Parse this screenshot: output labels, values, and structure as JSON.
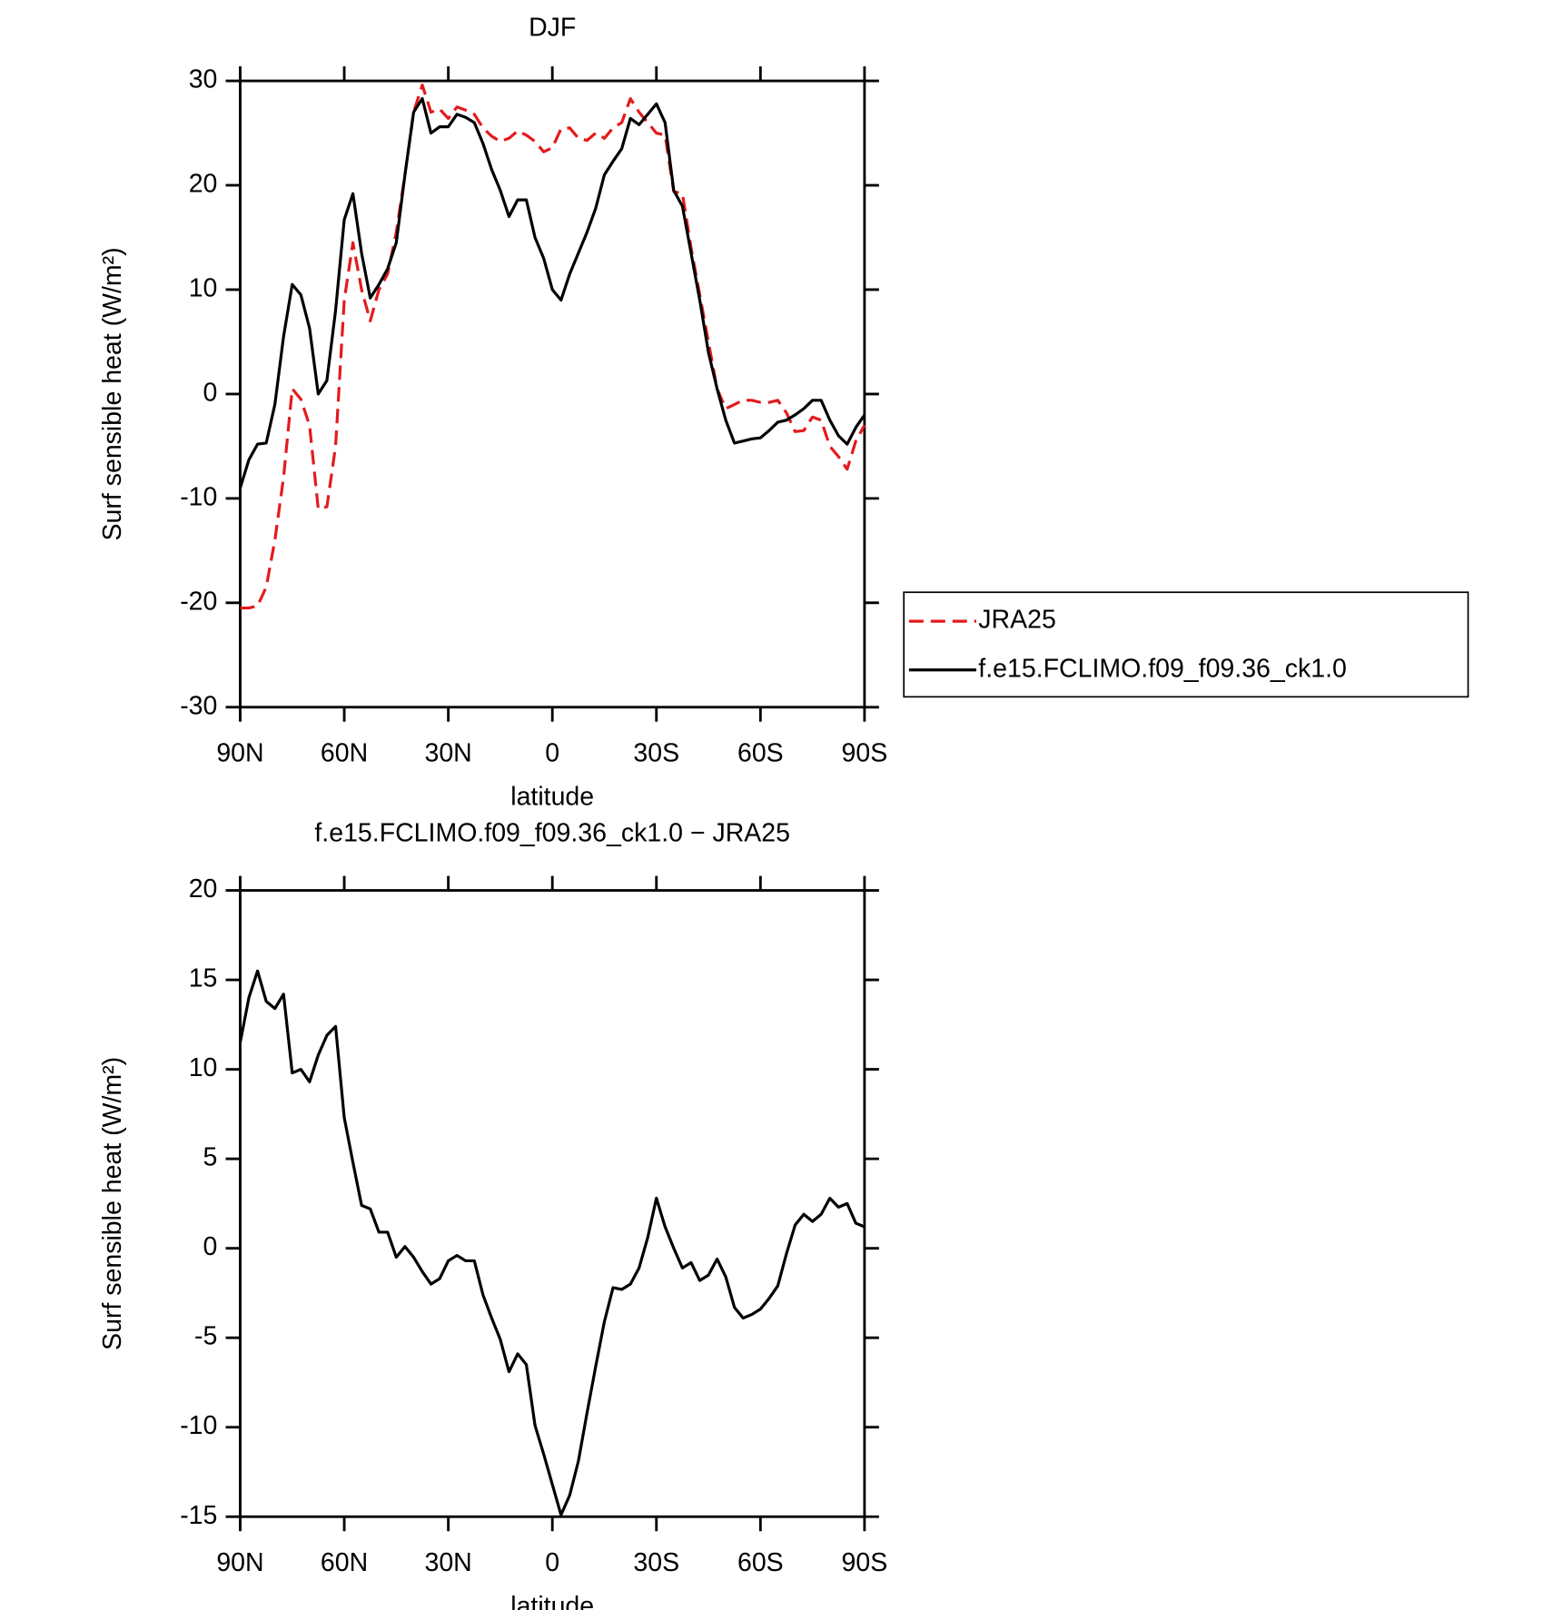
{
  "chart_data": [
    {
      "type": "line",
      "title": "DJF",
      "xlabel": "latitude",
      "ylabel": "Surf sensible heat (W/m²)",
      "legend": "right",
      "x": [
        90,
        87.5,
        85,
        82.5,
        80,
        77.5,
        75,
        72.5,
        70,
        67.5,
        65,
        62.5,
        60,
        57.5,
        55,
        52.5,
        50,
        47.5,
        45,
        42.5,
        40,
        37.5,
        35,
        32.5,
        30,
        27.5,
        25,
        22.5,
        20,
        17.5,
        15,
        12.5,
        10,
        7.5,
        5,
        2.5,
        0,
        -2.5,
        -5,
        -7.5,
        -10,
        -12.5,
        -15,
        -17.5,
        -20,
        -22.5,
        -25,
        -27.5,
        -30,
        -32.5,
        -35,
        -37.5,
        -40,
        -42.5,
        -45,
        -47.5,
        -50,
        -52.5,
        -55,
        -57.5,
        -60,
        -62.5,
        -65,
        -67.5,
        -70,
        -72.5,
        -75,
        -77.5,
        -80,
        -82.5,
        -85,
        -87.5,
        -90
      ],
      "xlim": [
        90,
        -90
      ],
      "xticks": [
        {
          "value": 90,
          "label": "90N"
        },
        {
          "value": 60,
          "label": "60N"
        },
        {
          "value": 30,
          "label": "30N"
        },
        0,
        {
          "value": -30,
          "label": "30S"
        },
        {
          "value": -60,
          "label": "60S"
        },
        {
          "value": -90,
          "label": "90S"
        }
      ],
      "ylim": [
        -30,
        30
      ],
      "yticks": [
        -30,
        -20,
        -10,
        0,
        10,
        20,
        30
      ],
      "series": [
        {
          "name": "JRA25",
          "color": "#e41a1c",
          "linestyle": "dashed",
          "values": [
            -20.5,
            -20.5,
            -20.3,
            -18.5,
            -14,
            -8,
            0.5,
            -0.5,
            -3,
            -11,
            -10.8,
            -5,
            9,
            14.5,
            10,
            7,
            10,
            11.5,
            15.5,
            21,
            27,
            29.6,
            27,
            27.3,
            26.4,
            27.5,
            27.2,
            26.8,
            25.5,
            24.7,
            24.2,
            24.5,
            25.2,
            24.8,
            24.2,
            23.2,
            23.6,
            25.4,
            25.5,
            24.5,
            24.3,
            25,
            24.5,
            25.5,
            26,
            28.3,
            27,
            26,
            25,
            24.8,
            19.4,
            19.2,
            14,
            9.5,
            5,
            0.5,
            -1.4,
            -1,
            -0.6,
            -0.6,
            -0.8,
            -0.8,
            -0.6,
            -1.8,
            -3.6,
            -3.5,
            -2.2,
            -2.5,
            -5,
            -6,
            -7.2,
            -4.5,
            -3
          ]
        },
        {
          "name": "f.e15.FCLIMO.f09_f09.36_ck1.0",
          "color": "#000000",
          "linestyle": "solid",
          "values": [
            -9,
            -6.3,
            -4.8,
            -4.7,
            -1,
            5.5,
            10.5,
            9.5,
            6.3,
            0,
            1.3,
            8,
            16.7,
            19.2,
            13.5,
            9.2,
            10.5,
            12,
            14.5,
            21,
            27,
            28.3,
            25,
            25.6,
            25.6,
            26.8,
            26.5,
            26,
            24,
            21.5,
            19.5,
            17,
            18.6,
            18.6,
            15,
            13,
            10,
            9,
            11.5,
            13.5,
            15.5,
            17.8,
            21,
            22.3,
            23.5,
            26.4,
            25.8,
            26.8,
            27.8,
            26,
            19.5,
            18,
            13.5,
            9,
            4,
            0.5,
            -2.5,
            -4.7,
            -4.5,
            -4.3,
            -4.2,
            -3.5,
            -2.7,
            -2.5,
            -2,
            -1.4,
            -0.6,
            -0.6,
            -2.5,
            -4,
            -4.8,
            -3.2,
            -2
          ]
        }
      ]
    },
    {
      "type": "line",
      "title": "f.e15.FCLIMO.f09_f09.36_ck1.0 − JRA25",
      "xlabel": "latitude",
      "ylabel": "Surf sensible heat (W/m²)",
      "x": [
        90,
        87.5,
        85,
        82.5,
        80,
        77.5,
        75,
        72.5,
        70,
        67.5,
        65,
        62.5,
        60,
        57.5,
        55,
        52.5,
        50,
        47.5,
        45,
        42.5,
        40,
        37.5,
        35,
        32.5,
        30,
        27.5,
        25,
        22.5,
        20,
        17.5,
        15,
        12.5,
        10,
        7.5,
        5,
        2.5,
        0,
        -2.5,
        -5,
        -7.5,
        -10,
        -12.5,
        -15,
        -17.5,
        -20,
        -22.5,
        -25,
        -27.5,
        -30,
        -32.5,
        -35,
        -37.5,
        -40,
        -42.5,
        -45,
        -47.5,
        -50,
        -52.5,
        -55,
        -57.5,
        -60,
        -62.5,
        -65,
        -67.5,
        -70,
        -72.5,
        -75,
        -77.5,
        -80,
        -82.5,
        -85,
        -87.5,
        -90
      ],
      "xlim": [
        90,
        -90
      ],
      "xticks": [
        {
          "value": 90,
          "label": "90N"
        },
        {
          "value": 60,
          "label": "60N"
        },
        {
          "value": 30,
          "label": "30N"
        },
        0,
        {
          "value": -30,
          "label": "30S"
        },
        {
          "value": -60,
          "label": "60S"
        },
        {
          "value": -90,
          "label": "90S"
        }
      ],
      "ylim": [
        -15,
        20
      ],
      "yticks": [
        -15,
        -10,
        -5,
        0,
        5,
        10,
        15,
        20
      ],
      "color": "#000000",
      "values": [
        11.5,
        14,
        15.5,
        13.8,
        13.4,
        14.2,
        9.8,
        10,
        9.3,
        10.8,
        11.9,
        12.4,
        7.3,
        4.8,
        2.4,
        2.2,
        0.9,
        0.9,
        -0.5,
        0.1,
        -0.5,
        -1.3,
        -2,
        -1.7,
        -0.7,
        -0.4,
        -0.7,
        -0.7,
        -2.6,
        -3.9,
        -5.1,
        -6.9,
        -5.9,
        -6.5,
        -9.9,
        -11.5,
        -13.2,
        -14.9,
        -13.8,
        -11.9,
        -9.2,
        -6.6,
        -4.1,
        -2.2,
        -2.3,
        -2,
        -1.1,
        0.6,
        2.8,
        1.2,
        0,
        -1.1,
        -0.8,
        -1.8,
        -1.5,
        -0.6,
        -1.6,
        -3.3,
        -3.9,
        -3.7,
        -3.4,
        -2.8,
        -2.1,
        -0.3,
        1.3,
        1.9,
        1.5,
        1.9,
        2.8,
        2.3,
        2.5,
        1.4,
        1.2
      ]
    }
  ]
}
